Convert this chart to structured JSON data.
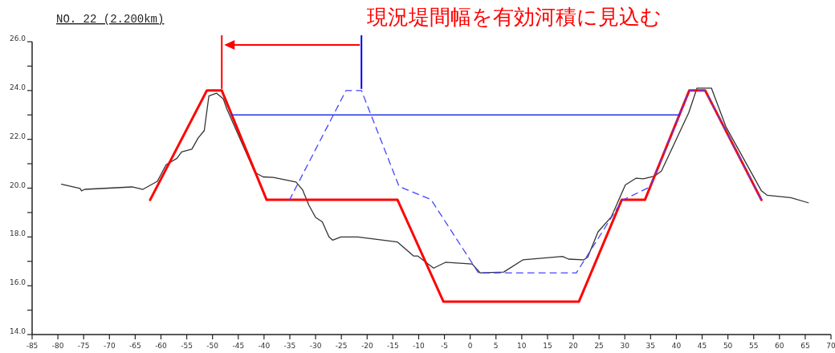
{
  "chart_data": {
    "type": "line",
    "title": "現況堤間幅を有効河積に見込む",
    "subtitle": "NO. 22 (2.200km)",
    "xlim": [
      -85,
      70
    ],
    "ylim": [
      14,
      26
    ],
    "xticks": [
      -85,
      -80,
      -75,
      -70,
      -65,
      -60,
      -55,
      -50,
      -45,
      -40,
      -35,
      -30,
      -25,
      -20,
      -15,
      -10,
      -5,
      0,
      5,
      10,
      15,
      20,
      25,
      30,
      35,
      40,
      45,
      50,
      55,
      60,
      65,
      70
    ],
    "yticks": [
      {
        "value": 14,
        "label": "14.0"
      },
      {
        "value": 15,
        "label": null
      },
      {
        "value": 16,
        "label": "16.0"
      },
      {
        "value": 17,
        "label": null
      },
      {
        "value": 18,
        "label": "18.0"
      },
      {
        "value": 19,
        "label": null
      },
      {
        "value": 20,
        "label": "20.0"
      },
      {
        "value": 21,
        "label": null
      },
      {
        "value": 22,
        "label": "22.0"
      },
      {
        "value": 23,
        "label": null
      },
      {
        "value": 24,
        "label": "24.0"
      },
      {
        "value": 25,
        "label": null
      },
      {
        "value": 26,
        "label": "26.0"
      }
    ],
    "series": [
      {
        "color": "#333333",
        "x": [
          -79.3,
          -75.7,
          -75.4,
          -74.8,
          -65.6,
          -63.5,
          -60.7,
          -59.0,
          -56.9,
          -56.0,
          -54.0,
          -52.8,
          -51.6,
          -50.7,
          -49.2,
          -47.9,
          -47.2,
          -41.8,
          -40.2,
          -38.2,
          -33.8,
          -32.5,
          -31.3,
          -30.0,
          -28.7,
          -27.4,
          -26.7,
          -25.1,
          -21.8,
          -14.1,
          -11.0,
          -10.2,
          -7.1,
          -4.8,
          0.4,
          1.9,
          6.5,
          10.2,
          17.9,
          19.1,
          22.0,
          22.8,
          24.8,
          27.4,
          30.1,
          32.2,
          33.6,
          35.7,
          37.1,
          42.4,
          44.0,
          46.8,
          49.6,
          56.5,
          57.6,
          62.2,
          65.6
        ],
        "values": [
          20.16,
          19.99,
          19.89,
          19.95,
          20.05,
          19.95,
          20.28,
          20.96,
          21.22,
          21.48,
          21.6,
          22.05,
          22.36,
          23.78,
          23.89,
          23.66,
          23.24,
          20.65,
          20.46,
          20.44,
          20.25,
          19.92,
          19.3,
          18.8,
          18.62,
          18.0,
          17.87,
          18.0,
          18.0,
          17.79,
          17.22,
          17.22,
          16.72,
          16.96,
          16.89,
          16.53,
          16.56,
          17.06,
          17.2,
          17.09,
          17.06,
          17.17,
          18.21,
          18.83,
          20.13,
          20.41,
          20.38,
          20.49,
          20.7,
          23.09,
          24.1,
          24.1,
          22.52,
          19.89,
          19.71,
          19.61,
          19.4
        ]
      },
      {
        "color": "#ff0000",
        "x": [
          -62.1,
          -51.1,
          -48.2,
          -39.5,
          -14.1,
          -5.2,
          21.1,
          29.4,
          33.9,
          42.5,
          45.6,
          56.5
        ],
        "values": [
          19.52,
          24.0,
          24.0,
          19.52,
          19.52,
          15.35,
          15.35,
          19.52,
          19.52,
          24.0,
          24.0,
          19.52
        ]
      },
      {
        "color": "#4444ff",
        "line_style": "dashed",
        "x": [
          -35.1,
          -24.1,
          -21.1,
          -13.8,
          -7.6,
          1.6,
          20.6,
          29.5,
          34.9,
          42.5,
          45.6,
          56.5
        ],
        "values": [
          19.5,
          24.0,
          24.0,
          20.07,
          19.53,
          16.53,
          16.53,
          19.5,
          20.05,
          24.0,
          24.0,
          19.52
        ]
      },
      {
        "color": "#2233ee",
        "x": [
          -46.4,
          40.6
        ],
        "values": [
          23.0,
          23.0
        ]
      }
    ]
  }
}
